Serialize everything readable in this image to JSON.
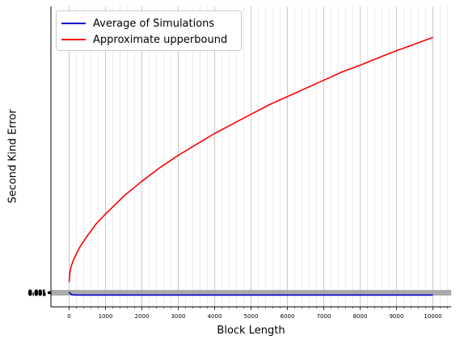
{
  "chart_data": {
    "type": "line",
    "title": "",
    "xlabel": "Block Length",
    "ylabel": "Second Kind Error",
    "xlim": [
      -500,
      10500
    ],
    "ylim": [
      -0.05,
      1.05
    ],
    "x_ticks": [
      0,
      1000,
      2000,
      3000,
      4000,
      5000,
      6000,
      7000,
      8000,
      9000,
      10000
    ],
    "x_tick_labels": [
      "0",
      "1000",
      "2000",
      "3000",
      "4000",
      "5000",
      "6000",
      "7000",
      "8000",
      "9000",
      "10000"
    ],
    "x_minor_step": 200,
    "y_tick_labels": [
      "0.001",
      "0.001",
      "0.001",
      "0.001",
      "0.001",
      "0.001"
    ],
    "grid": "vertical",
    "legend_position": "upper-left",
    "series": [
      {
        "name": "Average of Simulations",
        "color": "#0000cc",
        "x": [
          0,
          50,
          100,
          200,
          500,
          1000,
          2000,
          4000,
          6000,
          8000,
          10000
        ],
        "y": [
          0.004,
          -0.004,
          -0.006,
          -0.007,
          -0.007,
          -0.007,
          -0.007,
          -0.007,
          -0.007,
          -0.007,
          -0.007
        ]
      },
      {
        "name": "Approximate upperbound",
        "color": "#ff0000",
        "x": [
          0,
          25,
          50,
          100,
          200,
          300,
          500,
          750,
          1000,
          1500,
          2000,
          2500,
          3000,
          3500,
          4000,
          4500,
          5000,
          5500,
          6000,
          6500,
          7000,
          7500,
          8000,
          8500,
          9000,
          9500,
          10000
        ],
        "y": [
          0.04,
          0.08,
          0.095,
          0.115,
          0.145,
          0.17,
          0.21,
          0.255,
          0.29,
          0.355,
          0.41,
          0.46,
          0.505,
          0.545,
          0.585,
          0.62,
          0.655,
          0.69,
          0.72,
          0.75,
          0.78,
          0.81,
          0.835,
          0.862,
          0.888,
          0.912,
          0.937
        ]
      }
    ]
  },
  "colors": {
    "grid_major": "#c8c8c8",
    "grid_minor": "#e8e8e8",
    "band": "#aaaaaa",
    "axis": "#000000"
  }
}
